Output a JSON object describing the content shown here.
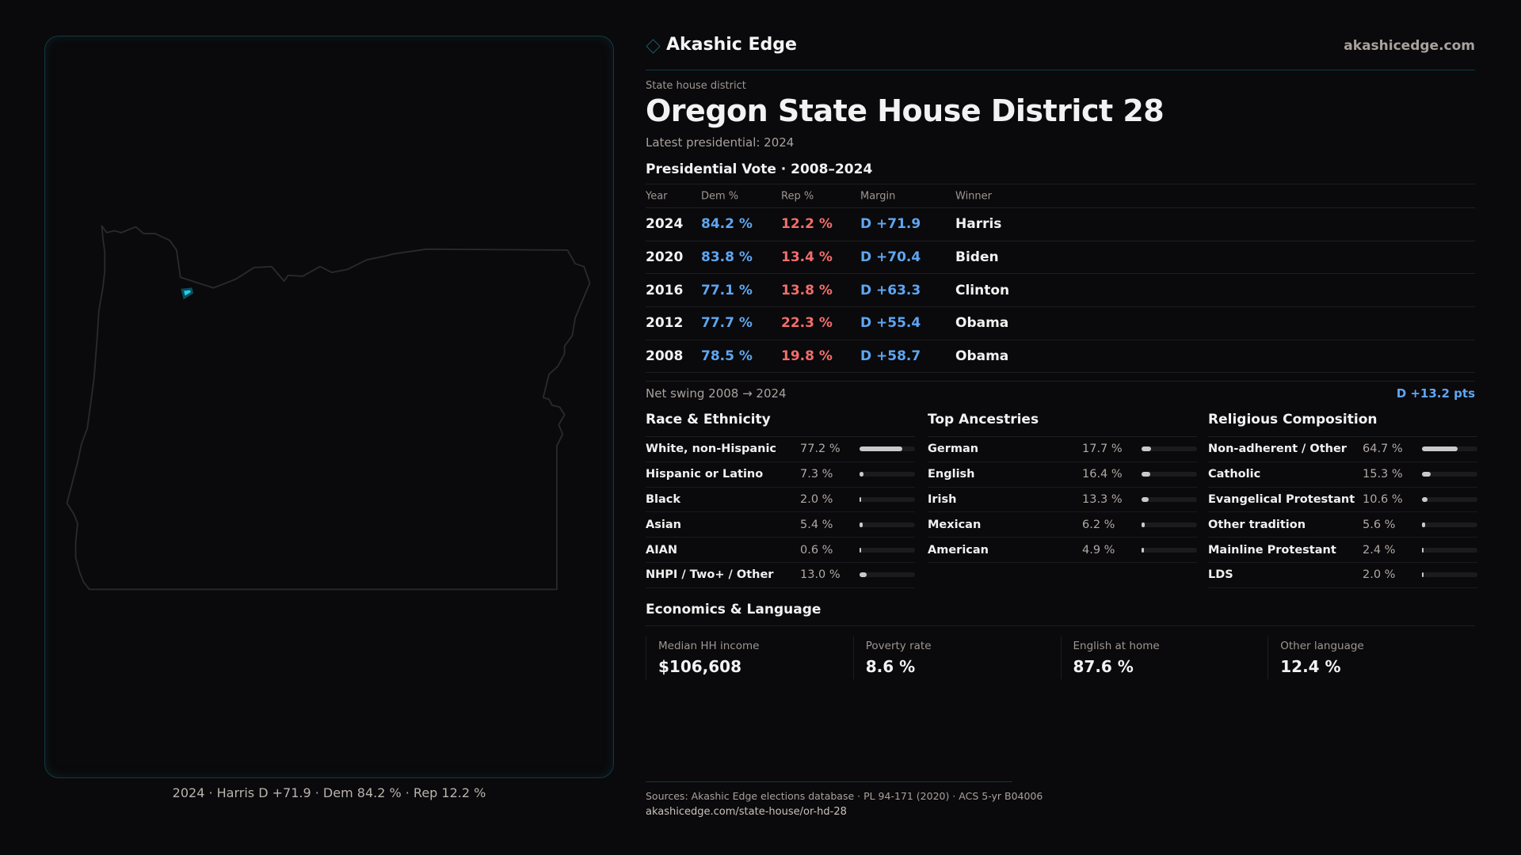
{
  "brand": {
    "name": "Akashic Edge",
    "site": "akashicedge.com"
  },
  "eyebrow": "State house district",
  "title": "Oregon State House District 28",
  "latest": "Latest presidential: 2024",
  "vote": {
    "heading": "Presidential Vote · 2008–2024",
    "columns": [
      "Year",
      "Dem %",
      "Rep %",
      "Margin",
      "Winner"
    ],
    "rows": [
      {
        "year": "2024",
        "dem": "84.2 %",
        "rep": "12.2 %",
        "margin": "D +71.9",
        "winner": "Harris"
      },
      {
        "year": "2020",
        "dem": "83.8 %",
        "rep": "13.4 %",
        "margin": "D +70.4",
        "winner": "Biden"
      },
      {
        "year": "2016",
        "dem": "77.1 %",
        "rep": "13.8 %",
        "margin": "D +63.3",
        "winner": "Clinton"
      },
      {
        "year": "2012",
        "dem": "77.7 %",
        "rep": "22.3 %",
        "margin": "D +55.4",
        "winner": "Obama"
      },
      {
        "year": "2008",
        "dem": "78.5 %",
        "rep": "19.8 %",
        "margin": "D +58.7",
        "winner": "Obama"
      }
    ],
    "swing_label": "Net swing 2008 → 2024",
    "swing_value": "D +13.2 pts"
  },
  "demographics": [
    {
      "heading": "Race & Ethnicity",
      "items": [
        {
          "label": "White, non-Hispanic",
          "value": "77.2 %",
          "pct": 77.2
        },
        {
          "label": "Hispanic or Latino",
          "value": "7.3 %",
          "pct": 7.3
        },
        {
          "label": "Black",
          "value": "2.0 %",
          "pct": 2.0
        },
        {
          "label": "Asian",
          "value": "5.4 %",
          "pct": 5.4
        },
        {
          "label": "AIAN",
          "value": "0.6 %",
          "pct": 0.6
        },
        {
          "label": "NHPI / Two+ / Other",
          "value": "13.0 %",
          "pct": 13.0
        }
      ]
    },
    {
      "heading": "Top Ancestries",
      "items": [
        {
          "label": "German",
          "value": "17.7 %",
          "pct": 17.7
        },
        {
          "label": "English",
          "value": "16.4 %",
          "pct": 16.4
        },
        {
          "label": "Irish",
          "value": "13.3 %",
          "pct": 13.3
        },
        {
          "label": "Mexican",
          "value": "6.2 %",
          "pct": 6.2
        },
        {
          "label": "American",
          "value": "4.9 %",
          "pct": 4.9
        }
      ]
    },
    {
      "heading": "Religious Composition",
      "items": [
        {
          "label": "Non-adherent / Other",
          "value": "64.7 %",
          "pct": 64.7
        },
        {
          "label": "Catholic",
          "value": "15.3 %",
          "pct": 15.3
        },
        {
          "label": "Evangelical Protestant",
          "value": "10.6 %",
          "pct": 10.6
        },
        {
          "label": "Other tradition",
          "value": "5.6 %",
          "pct": 5.6
        },
        {
          "label": "Mainline Protestant",
          "value": "2.4 %",
          "pct": 2.4
        },
        {
          "label": "LDS",
          "value": "2.0 %",
          "pct": 2.0
        }
      ]
    }
  ],
  "economics": {
    "heading": "Economics & Language",
    "cards": [
      {
        "label": "Median HH income",
        "value": "$106,608"
      },
      {
        "label": "Poverty rate",
        "value": "8.6 %"
      },
      {
        "label": "English at home",
        "value": "87.6 %"
      },
      {
        "label": "Other language",
        "value": "12.4 %"
      }
    ]
  },
  "map": {
    "caption": "2024 · Harris D +71.9 · Dem 84.2 % · Rep 12.2 %",
    "highlight_color": "#19d3f0",
    "outline_color": "#2a2a2c"
  },
  "footer": {
    "sources": "Sources: Akashic Edge elections database · PL 94-171 (2020) · ACS 5-yr B04006",
    "url": "akashicedge.com/state-house/or-hd-28"
  },
  "colors": {
    "dem": "#5ea6f2",
    "rep": "#f26d6d",
    "background": "#0a090b",
    "accent": "#0f3b46"
  }
}
